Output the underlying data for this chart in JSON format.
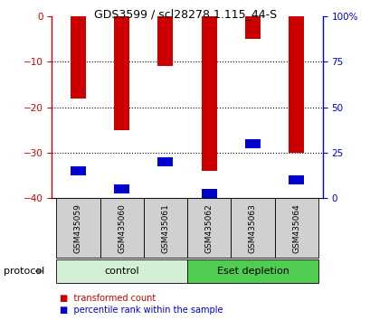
{
  "title": "GDS3599 / scl28278.1.115_44-S",
  "samples": [
    "GSM435059",
    "GSM435060",
    "GSM435061",
    "GSM435062",
    "GSM435063",
    "GSM435064"
  ],
  "red_bar_bottoms": [
    -18,
    -25,
    -11,
    -34,
    -5,
    -30
  ],
  "blue_bar_tops": [
    -33,
    -37,
    -31,
    -38,
    -27,
    -35
  ],
  "blue_bar_bottoms": [
    -35,
    -39,
    -33,
    -40,
    -29,
    -37
  ],
  "ylim": [
    -40,
    0
  ],
  "yticks_left": [
    0,
    -10,
    -20,
    -30,
    -40
  ],
  "yticks_right_pos": [
    0,
    -10,
    -20,
    -30,
    -40
  ],
  "yticks_right_labels": [
    "100%",
    "75",
    "50",
    "25",
    "0"
  ],
  "groups": [
    {
      "label": "control",
      "start": 0,
      "end": 3,
      "color": "#d4f0d4"
    },
    {
      "label": "Eset depletion",
      "start": 3,
      "end": 6,
      "color": "#50cc50"
    }
  ],
  "protocol_label": "protocol",
  "bar_width": 0.35,
  "red_color": "#cc0000",
  "blue_color": "#0000cc",
  "left_axis_color": "#cc0000",
  "right_axis_color": "#0000cc",
  "sample_bg_color": "#d0d0d0",
  "legend_red_label": "transformed count",
  "legend_blue_label": "percentile rank within the sample",
  "figsize": [
    4.1,
    3.54
  ],
  "dpi": 100
}
